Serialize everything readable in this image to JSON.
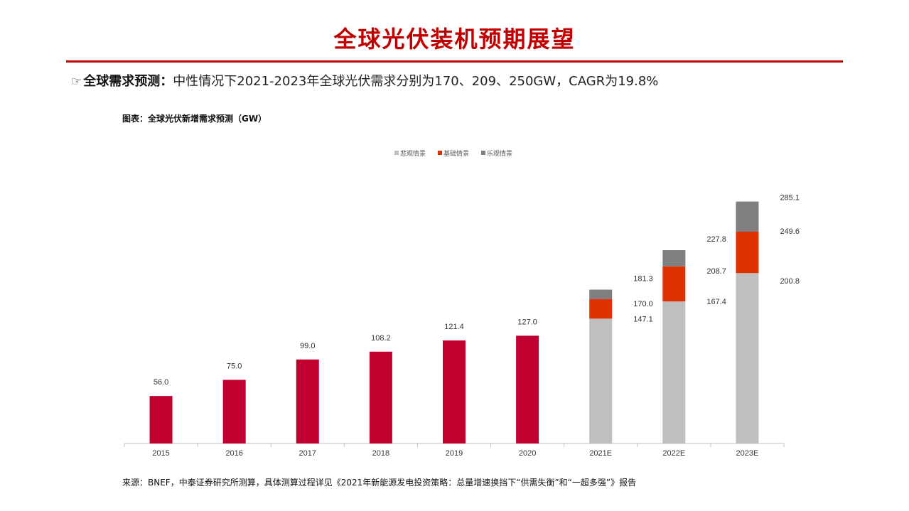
{
  "page": {
    "title": "全球光伏装机预期展望",
    "bullet_pointer": "☞",
    "bullet_lead": "全球需求预测：",
    "bullet_text": "中性情况下2021-2023年全球光伏需求分别为170、209、250GW，CAGR为19.8%",
    "figure_title": "图表：全球光伏新增需求预测（GW）",
    "source": "来源：BNEF，中泰证券研究所测算，具体测算过程详见《2021年新能源发电投资策略：总量增速换挡下“供需失衡”和“一超多强”》报告"
  },
  "colors": {
    "title_red": "#c00000",
    "actual": "#c0002f",
    "pessimistic": "#bfbfbf",
    "base": "#e03200",
    "optimistic": "#7f7f7f"
  },
  "chart_data": {
    "type": "bar",
    "stacked": true,
    "title": "",
    "xlabel": "",
    "ylabel": "",
    "ylim": [
      0,
      300
    ],
    "grid": false,
    "legend_position": "top-center",
    "categories": [
      "2015",
      "2016",
      "2017",
      "2018",
      "2019",
      "2020",
      "2021E",
      "2022E",
      "2023E"
    ],
    "actual": {
      "values": [
        56.0,
        75.0,
        99.0,
        108.2,
        121.4,
        127.0,
        null,
        null,
        null
      ],
      "labels": [
        "56.0",
        "75.0",
        "99.0",
        "108.2",
        "121.4",
        "127.0",
        "",
        "",
        ""
      ]
    },
    "series": [
      {
        "name": "悲观情景",
        "cumulative": [
          null,
          null,
          null,
          null,
          null,
          null,
          147.1,
          167.4,
          200.8
        ],
        "labels": [
          "",
          "",
          "",
          "",
          "",
          "",
          "147.1",
          "167.4",
          "200.8"
        ]
      },
      {
        "name": "基础情景",
        "cumulative": [
          null,
          null,
          null,
          null,
          null,
          null,
          170.0,
          208.7,
          249.6
        ],
        "labels": [
          "",
          "",
          "",
          "",
          "",
          "",
          "170.0",
          "208.7",
          "249.6"
        ]
      },
      {
        "name": "乐观情景",
        "cumulative": [
          null,
          null,
          null,
          null,
          null,
          null,
          181.3,
          227.8,
          285.1
        ],
        "labels": [
          "",
          "",
          "",
          "",
          "",
          "",
          "181.3",
          "227.8",
          "285.1"
        ]
      }
    ]
  }
}
